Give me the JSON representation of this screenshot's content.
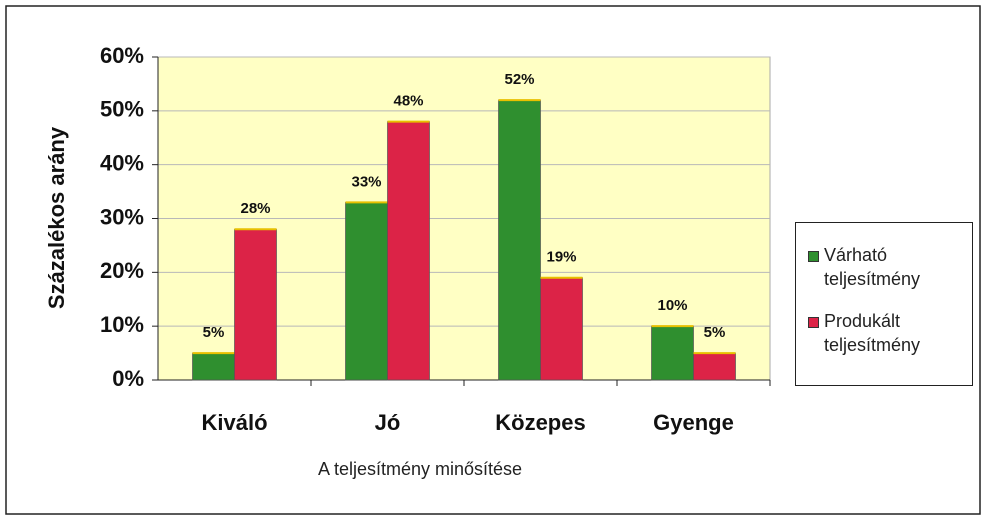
{
  "chart_data": {
    "type": "bar",
    "y_label": "Százalékos arány",
    "x_label": "A teljesítmény minősítése",
    "categories": [
      "Kiváló",
      "Jó",
      "Közepes",
      "Gyenge"
    ],
    "series": [
      {
        "name": "Várható teljesítmény",
        "color": "#2f8f2f",
        "values": [
          5,
          33,
          52,
          10
        ],
        "value_labels": [
          "5%",
          "33%",
          "52%",
          "10%"
        ]
      },
      {
        "name": "Produkált teljesítmény",
        "color": "#dc2347",
        "values": [
          28,
          48,
          19,
          5
        ],
        "value_labels": [
          "28%",
          "48%",
          "19%",
          "5%"
        ]
      }
    ],
    "ylim": [
      0,
      60
    ],
    "yticks": [
      {
        "value": 0,
        "label": "0%"
      },
      {
        "value": 10,
        "label": "10%"
      },
      {
        "value": 20,
        "label": "20%"
      },
      {
        "value": 30,
        "label": "30%"
      },
      {
        "value": 40,
        "label": "40%"
      },
      {
        "value": 50,
        "label": "50%"
      },
      {
        "value": 60,
        "label": "60%"
      }
    ],
    "grid": true,
    "plot_background": "#ffffc4"
  }
}
